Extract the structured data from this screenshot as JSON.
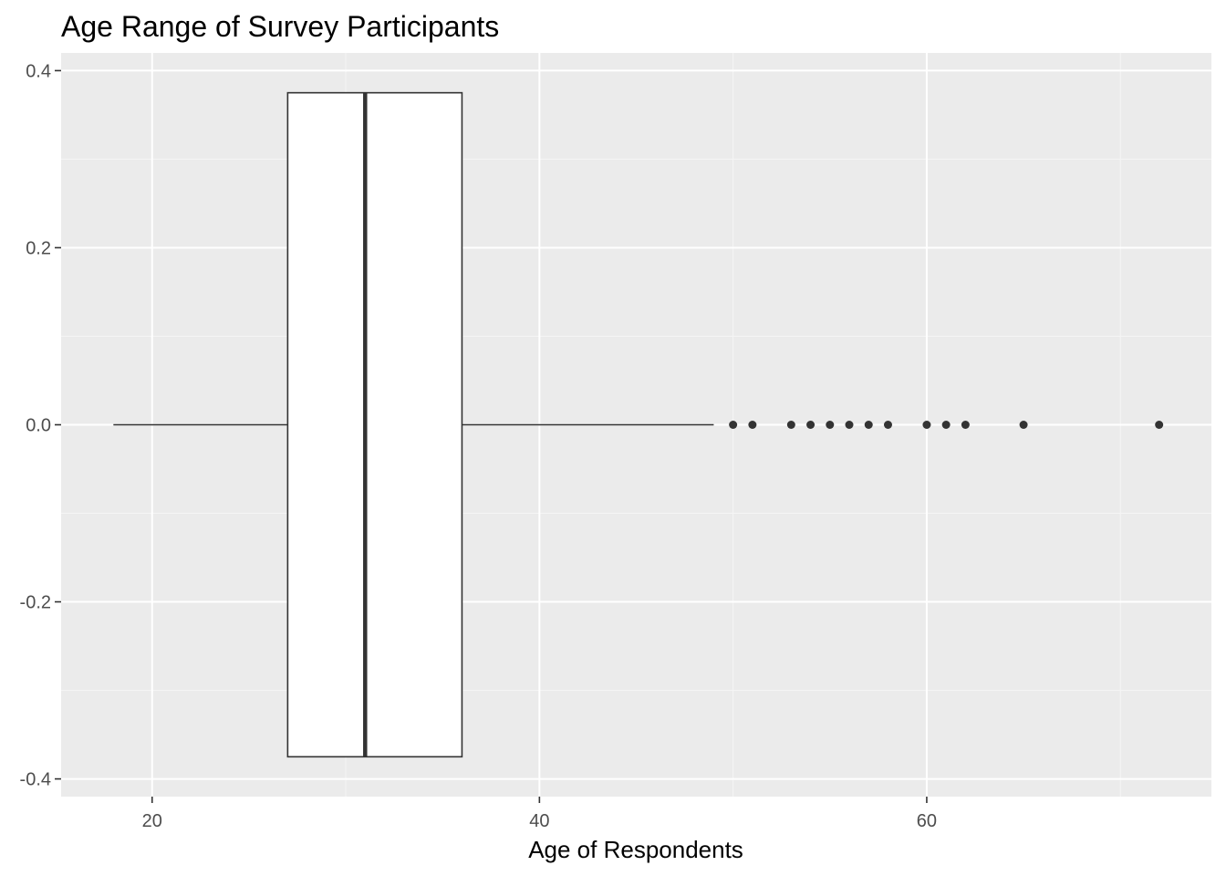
{
  "chart_data": {
    "type": "boxplot",
    "title": "Age Range of Survey Participants",
    "xlabel": "Age of Respondents",
    "ylabel": "",
    "xlim": [
      15.3,
      74.7
    ],
    "ylim": [
      -0.42,
      0.42
    ],
    "x_ticks": [
      20,
      40,
      60
    ],
    "x_tick_labels": [
      "20",
      "40",
      "60"
    ],
    "x_minor_ticks": [
      30,
      50,
      70
    ],
    "y_ticks": [
      -0.4,
      -0.2,
      0.0,
      0.2,
      0.4
    ],
    "y_tick_labels": [
      "-0.4",
      "-0.2",
      "0.0",
      "0.2",
      "0.4"
    ],
    "y_minor_ticks": [
      -0.3,
      -0.1,
      0.1,
      0.3
    ],
    "box": {
      "whisker_low": 18,
      "q1": 27,
      "median": 31,
      "q3": 36,
      "whisker_high": 49,
      "y_center": 0.0,
      "half_width": 0.375
    },
    "outliers": [
      50,
      51,
      53,
      54,
      55,
      56,
      57,
      58,
      60,
      61,
      62,
      65,
      72
    ],
    "colors": {
      "panel": "#ebebeb",
      "grid_major": "#ffffff",
      "grid_minor": "#f5f5f5",
      "box_fill": "#ffffff",
      "box_stroke": "#333333",
      "tick": "#333333"
    },
    "grid": true,
    "legend": "none"
  }
}
